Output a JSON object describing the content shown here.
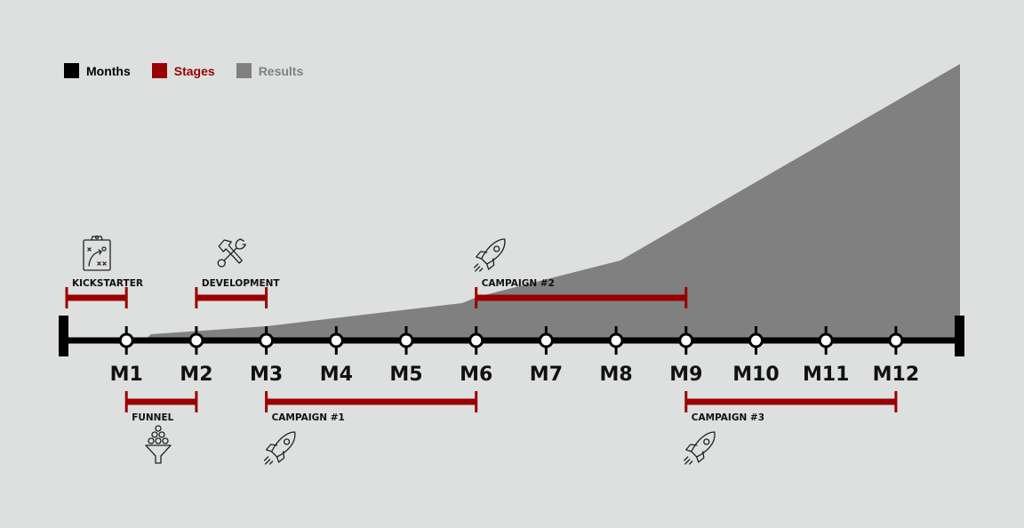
{
  "legend": [
    {
      "label": "Months",
      "color": "#000000"
    },
    {
      "label": "Stages",
      "color": "#990000"
    },
    {
      "label": "Results",
      "color": "#808080"
    }
  ],
  "months": [
    "M1",
    "M2",
    "M3",
    "M4",
    "M5",
    "M6",
    "M7",
    "M8",
    "M9",
    "M10",
    "M11",
    "M12"
  ],
  "stages": [
    {
      "label": "KICKSTARTER",
      "start": 0,
      "end": 1,
      "side": "above",
      "icon": "clipboard-strategy-icon"
    },
    {
      "label": "DEVELOPMENT",
      "start": 2,
      "end": 3,
      "side": "above",
      "icon": "hammer-wrench-icon"
    },
    {
      "label": "CAMPAIGN #2",
      "start": 6,
      "end": 9,
      "side": "above",
      "icon": "rocket-icon"
    },
    {
      "label": "FUNNEL",
      "start": 1,
      "end": 2,
      "side": "below",
      "icon": "funnel-icon"
    },
    {
      "label": "CAMPAIGN #1",
      "start": 3,
      "end": 6,
      "side": "below",
      "icon": "rocket-icon"
    },
    {
      "label": "CAMPAIGN #3",
      "start": 9,
      "end": 12,
      "side": "below",
      "icon": "rocket-icon"
    }
  ],
  "colors": {
    "axis": "#000000",
    "stage": "#990000",
    "results": "#808080",
    "background": "#dde0df"
  }
}
